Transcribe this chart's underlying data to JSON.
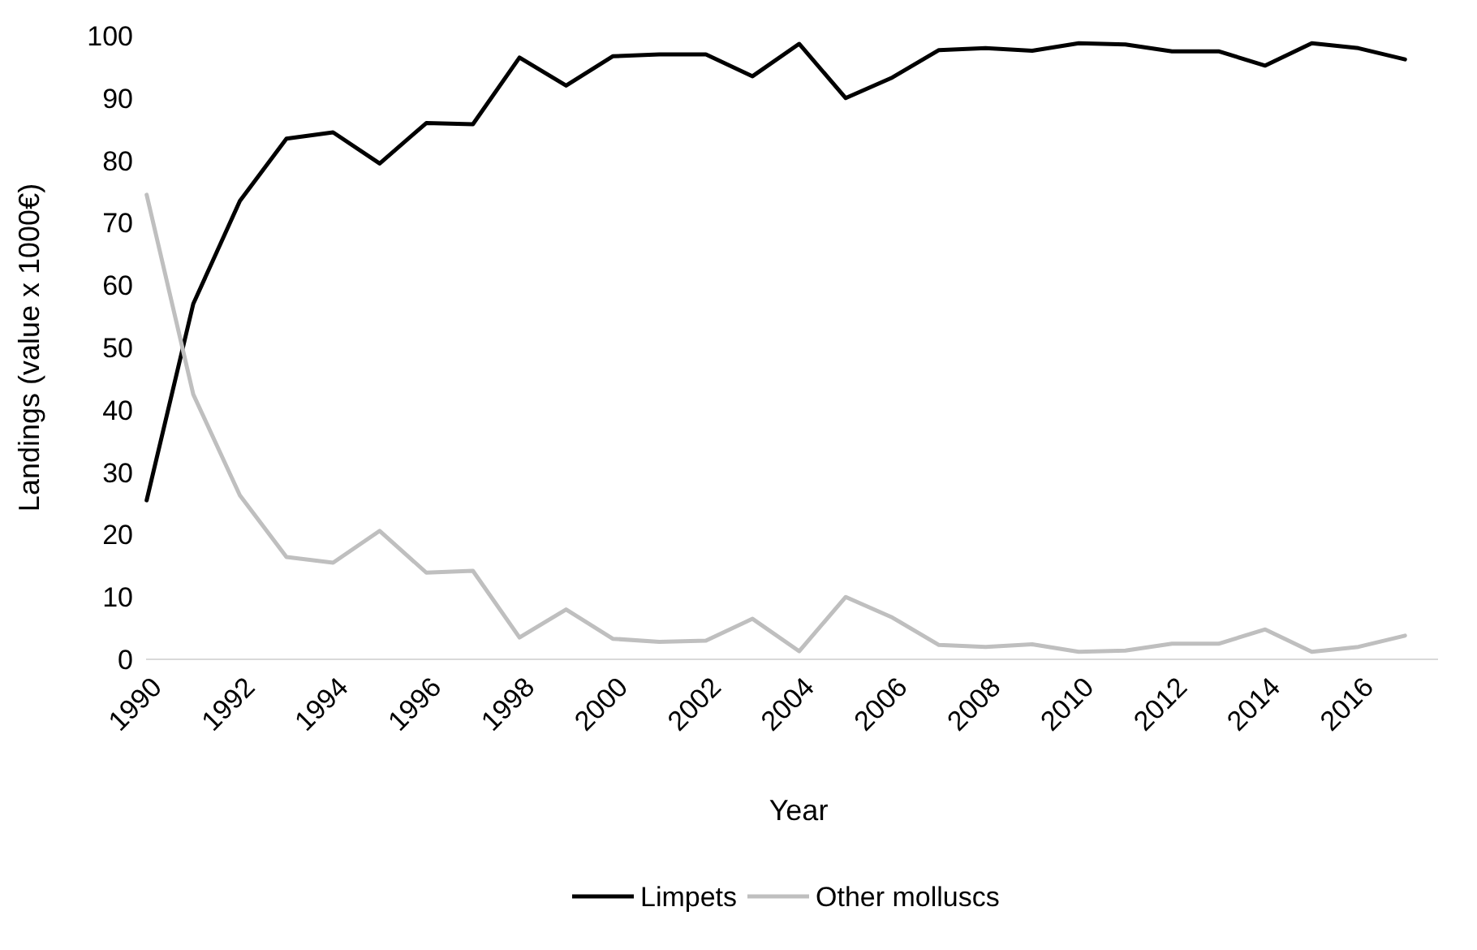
{
  "chart_data": {
    "type": "line",
    "xlabel": "Year",
    "ylabel": "Landings (value x 1000€)",
    "categories": [
      "1990",
      null,
      "1992",
      null,
      "1994",
      null,
      "1996",
      null,
      "1998",
      null,
      "2000",
      null,
      "2002",
      null,
      "2004",
      null,
      "2006",
      null,
      "2008",
      null,
      "2010",
      null,
      "2012",
      null,
      "2014",
      null,
      "2016",
      null
    ],
    "series": [
      {
        "name": "Limpets",
        "color": "#000000",
        "values": [
          25.5,
          57,
          73.5,
          83.5,
          84.5,
          79.5,
          86,
          85.8,
          96.5,
          92,
          96.7,
          97,
          97,
          93.5,
          98.7,
          90,
          93.3,
          97.7,
          98,
          97.6,
          98.8,
          98.6,
          97.5,
          97.5,
          95.2,
          98.8,
          98,
          96.2
        ]
      },
      {
        "name": "Other molluscs",
        "color": "#bfbfbf",
        "values": [
          74.5,
          42.5,
          26.3,
          16.4,
          15.5,
          20.6,
          13.9,
          14.2,
          3.5,
          8,
          3.3,
          2.8,
          3,
          6.5,
          1.3,
          10,
          6.7,
          2.3,
          2,
          2.4,
          1.2,
          1.4,
          2.5,
          2.5,
          4.8,
          1.2,
          2,
          3.8
        ]
      }
    ],
    "ylim": [
      0,
      100
    ],
    "yticks": [
      0,
      10,
      20,
      30,
      40,
      50,
      60,
      70,
      80,
      90,
      100
    ],
    "grid": false,
    "legend": "bottom",
    "marker": "none",
    "line_style": "solid"
  }
}
